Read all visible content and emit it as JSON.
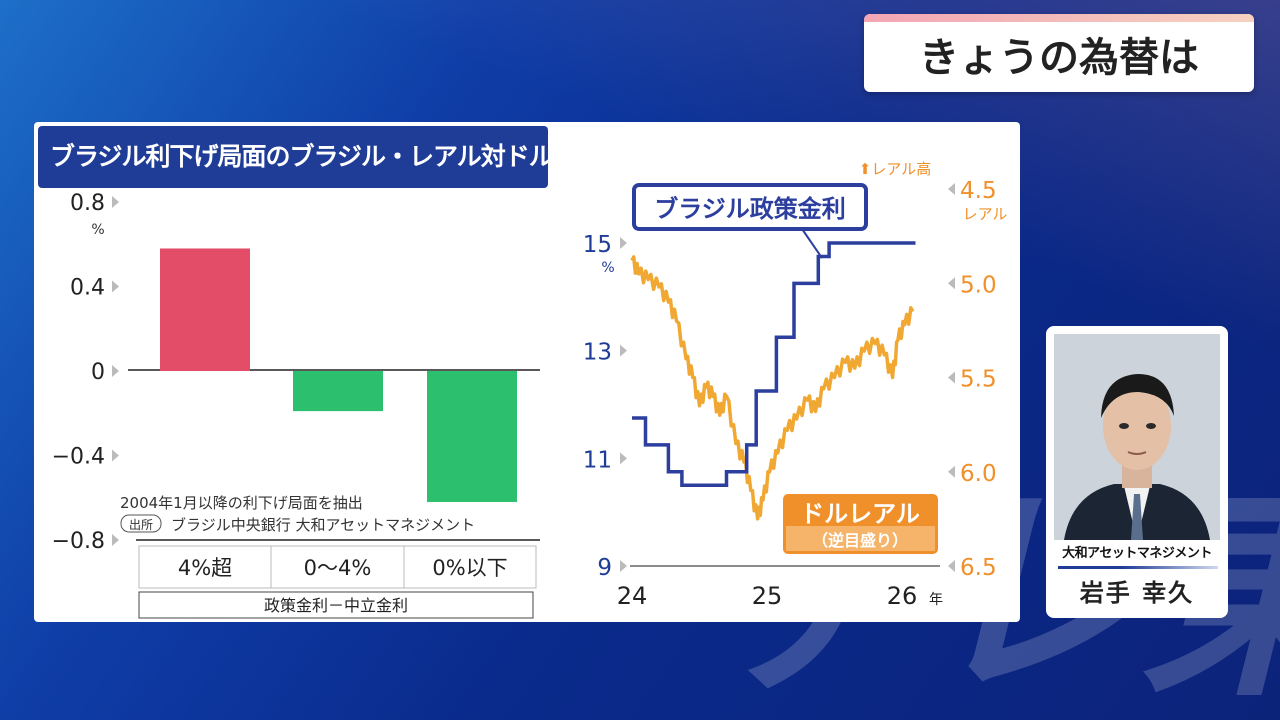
{
  "header": {
    "title": "きょうの為替は"
  },
  "watermark": "テレ東",
  "chart_title": "ブラジル利下げ局面のブラジル・レアル対ドル騰落率",
  "notes": {
    "method": "2004年1月以降の利下げ局面を抽出",
    "source_tag": "出所",
    "source": "ブラジル中央銀行 大和アセットマネジメント"
  },
  "person": {
    "affiliation": "大和アセットマネジメント",
    "name": "岩手 幸久"
  },
  "chart_data": [
    {
      "type": "bar",
      "categories": [
        "4%超",
        "0〜4%",
        "0%以下"
      ],
      "values": [
        0.58,
        -0.19,
        -0.62
      ],
      "colors": [
        "#e34d67",
        "#2bbf6e",
        "#2bbf6e"
      ],
      "ylim": [
        -0.8,
        0.8
      ],
      "yticks": [
        "0.8",
        "0.4",
        "0",
        "−0.4",
        "−0.8"
      ],
      "yunit": "%",
      "xlabel": "政策金利－中立金利"
    },
    {
      "type": "line",
      "x_ticks": [
        "24",
        "25",
        "26"
      ],
      "x_unit": "年",
      "x_range": [
        2024.0,
        2026.2
      ],
      "left_axis": {
        "ticks": [
          "15",
          "13",
          "11",
          "9"
        ],
        "unit": "%",
        "range": [
          9,
          15.3
        ],
        "color": "#1f3c96"
      },
      "right_axis": {
        "ticks": [
          "4.5",
          "5.0",
          "5.5",
          "6.0",
          "6.5"
        ],
        "unit": "レアル",
        "range": [
          4.5,
          6.5
        ],
        "inverted": true,
        "color": "#f0902a",
        "note": "⬆レアル高"
      },
      "series": [
        {
          "name": "ブラジル政策金利",
          "axis": "left",
          "color": "#2c3f9e",
          "step": true,
          "points": [
            [
              2024.0,
              11.75
            ],
            [
              2024.1,
              11.25
            ],
            [
              2024.27,
              10.75
            ],
            [
              2024.37,
              10.5
            ],
            [
              2024.7,
              10.75
            ],
            [
              2024.85,
              11.25
            ],
            [
              2024.92,
              12.25
            ],
            [
              2025.07,
              13.25
            ],
            [
              2025.2,
              14.25
            ],
            [
              2025.38,
              14.75
            ],
            [
              2025.46,
              15.0
            ],
            [
              2026.1,
              15.0
            ]
          ]
        },
        {
          "name": "ドルレアル",
          "sublabel": "（逆目盛り）",
          "axis": "right",
          "color": "#f0a832",
          "points": [
            [
              2024.0,
              4.88
            ],
            [
              2024.05,
              4.95
            ],
            [
              2024.12,
              4.98
            ],
            [
              2024.2,
              5.02
            ],
            [
              2024.27,
              5.1
            ],
            [
              2024.33,
              5.2
            ],
            [
              2024.4,
              5.4
            ],
            [
              2024.45,
              5.5
            ],
            [
              2024.5,
              5.65
            ],
            [
              2024.55,
              5.55
            ],
            [
              2024.6,
              5.6
            ],
            [
              2024.65,
              5.7
            ],
            [
              2024.7,
              5.6
            ],
            [
              2024.77,
              5.85
            ],
            [
              2024.83,
              5.95
            ],
            [
              2024.88,
              6.1
            ],
            [
              2024.93,
              6.25
            ],
            [
              2024.97,
              6.15
            ],
            [
              2025.02,
              6.0
            ],
            [
              2025.08,
              5.9
            ],
            [
              2025.15,
              5.78
            ],
            [
              2025.22,
              5.72
            ],
            [
              2025.3,
              5.62
            ],
            [
              2025.36,
              5.68
            ],
            [
              2025.42,
              5.56
            ],
            [
              2025.5,
              5.5
            ],
            [
              2025.58,
              5.42
            ],
            [
              2025.65,
              5.45
            ],
            [
              2025.72,
              5.36
            ],
            [
              2025.8,
              5.32
            ],
            [
              2025.87,
              5.38
            ],
            [
              2025.93,
              5.5
            ],
            [
              2025.97,
              5.3
            ],
            [
              2026.02,
              5.22
            ],
            [
              2026.08,
              5.15
            ]
          ]
        }
      ]
    }
  ]
}
